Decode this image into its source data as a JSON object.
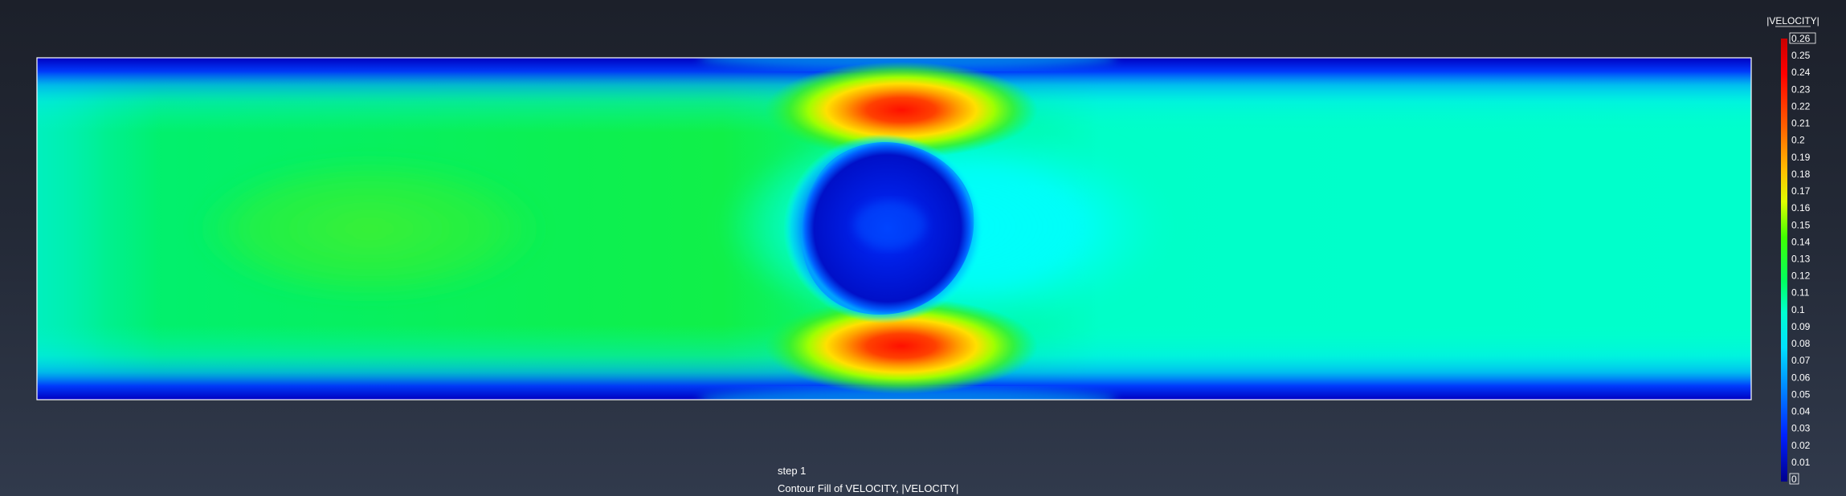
{
  "caption": {
    "step": "step 1",
    "description": "Contour Fill of VELOCITY, |VELOCITY|"
  },
  "legend": {
    "title": "|VELOCITY|",
    "ticks": [
      "0.26",
      "0.25",
      "0.24",
      "0.23",
      "0.22",
      "0.21",
      "0.2",
      "0.19",
      "0.18",
      "0.17",
      "0.16",
      "0.15",
      "0.14",
      "0.13",
      "0.12",
      "0.11",
      "0.1",
      "0.09",
      "0.08",
      "0.07",
      "0.06",
      "0.05",
      "0.04",
      "0.03",
      "0.02",
      "0.01",
      "0"
    ],
    "max": 0.26,
    "min": 0
  },
  "colors": {
    "bg_top": "#1c202a",
    "bg_bottom": "#313a4c",
    "domain_border": "#ffffff",
    "field_inlet": "#00f060",
    "field_core": "#2cf038",
    "field_outlet": "#00ffc8",
    "field_wall": "#0000d8",
    "obstacle": "#0014c8",
    "jet_hot": "#ff2000"
  }
}
